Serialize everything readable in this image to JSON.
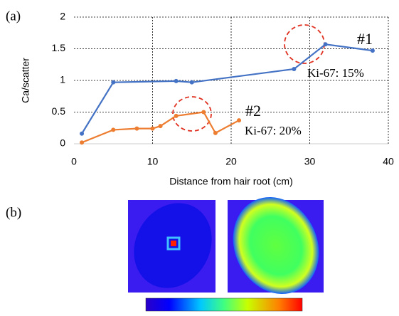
{
  "chart_data": {
    "type": "line",
    "panel_a": "(a)",
    "panel_b": "(b)",
    "x_label": "Distance from hair root (cm)",
    "y_label": "Ca/scatter",
    "xlim": [
      0,
      40
    ],
    "xticks": [
      0,
      10,
      20,
      30,
      40
    ],
    "ylim": [
      0,
      2
    ],
    "yticks": [
      0,
      0.5,
      1,
      1.5,
      2
    ],
    "grid": true,
    "series": [
      {
        "name": "#1",
        "color": "#4472c4",
        "x": [
          1,
          5,
          13,
          15,
          28,
          32,
          38
        ],
        "values": [
          0.16,
          0.97,
          0.99,
          0.97,
          1.18,
          1.57,
          1.47
        ]
      },
      {
        "name": "#2",
        "color": "#ed7d31",
        "x": [
          1,
          5,
          8,
          10,
          11,
          13,
          16.5,
          18,
          21
        ],
        "values": [
          0.02,
          0.22,
          0.24,
          0.24,
          0.28,
          0.44,
          0.5,
          0.17,
          0.37
        ]
      }
    ],
    "annotations": [
      "Ki-67: 15%",
      "Ki-67: 20%"
    ]
  }
}
